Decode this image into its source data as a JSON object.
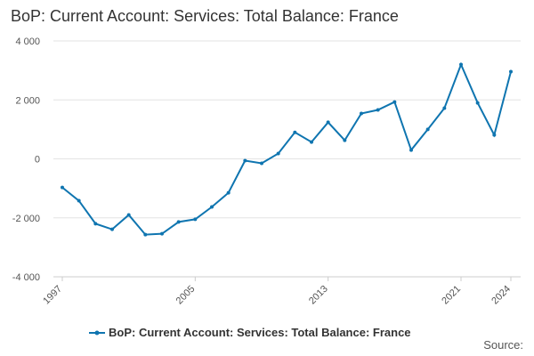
{
  "chart_data": {
    "type": "line",
    "title": "BoP: Current Account: Services: Total Balance: France",
    "x": [
      1997,
      1998,
      1999,
      2000,
      2001,
      2002,
      2003,
      2004,
      2005,
      2006,
      2007,
      2008,
      2009,
      2010,
      2011,
      2012,
      2013,
      2014,
      2015,
      2016,
      2017,
      2018,
      2019,
      2020,
      2021,
      2022,
      2023,
      2024
    ],
    "series": [
      {
        "name": "BoP: Current Account: Services: Total Balance: France",
        "color": "#0f75b0",
        "values": [
          -970,
          -1420,
          -2200,
          -2390,
          -1900,
          -2570,
          -2540,
          -2140,
          -2050,
          -1630,
          -1150,
          -60,
          -150,
          180,
          900,
          570,
          1240,
          630,
          1540,
          1660,
          1930,
          300,
          1000,
          1720,
          3200,
          1900,
          810,
          2960
        ]
      }
    ],
    "xlim": [
      1997,
      2024
    ],
    "xticks": [
      1997,
      2005,
      2013,
      2021,
      2024
    ],
    "ylim": [
      -4000,
      4000
    ],
    "yticks": [
      {
        "value": -4000,
        "label": "-4 000"
      },
      {
        "value": -2000,
        "label": "-2 000"
      },
      0,
      {
        "value": 2000,
        "label": "2 000"
      },
      {
        "value": 4000,
        "label": "4 000"
      }
    ],
    "grid": true,
    "source": "Source:"
  }
}
